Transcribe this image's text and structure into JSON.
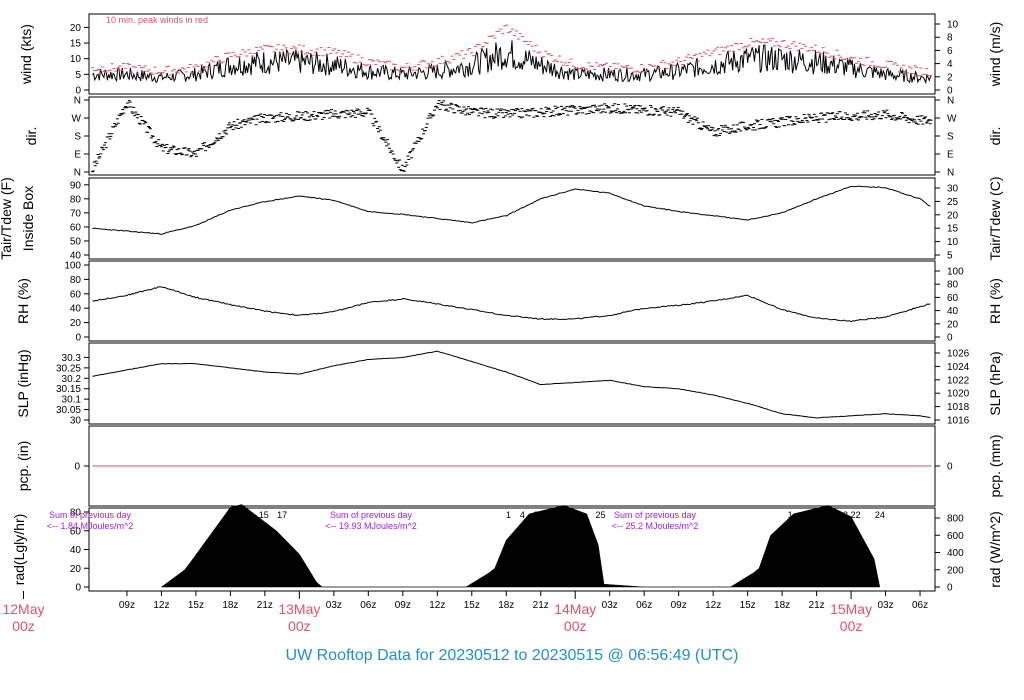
{
  "footer": {
    "title": "UW Rooftop Data for 20230512  to  20230515 @ 06:56:49  (UTC)"
  },
  "colors": {
    "peak": "#DF536B",
    "zero": "#DF536B",
    "sum": "#A020F0",
    "date": "#DF536B",
    "footer": "#1E90D0",
    "line": "#000000"
  },
  "chart_data": [
    {
      "type": "line",
      "ylabel": "wind (kts)",
      "ylabel_right": "wind (m/s)",
      "ylim": [
        0,
        23
      ],
      "yticks": [
        0,
        5,
        10,
        15,
        20
      ],
      "right_ticks": [
        "0",
        "2",
        "4",
        "6",
        "8",
        "10"
      ],
      "annotation": "10 min. peak winds in red",
      "x_range_hours": [
        6,
        79
      ],
      "series": [
        {
          "role": "sustained",
          "x": [
            6,
            9,
            12,
            15,
            18,
            21,
            24,
            27,
            30,
            33,
            36,
            39,
            42,
            45,
            48,
            51,
            54,
            57,
            60,
            63,
            66,
            69,
            72,
            75,
            78
          ],
          "values": [
            5,
            5,
            4,
            5,
            8,
            9,
            9,
            8,
            6,
            5,
            6,
            8,
            12,
            8,
            5,
            5,
            5,
            6,
            8,
            10,
            10,
            9,
            7,
            5,
            4
          ]
        },
        {
          "role": "peak",
          "x": [
            6,
            9,
            12,
            15,
            18,
            21,
            24,
            27,
            30,
            33,
            36,
            39,
            42,
            45,
            48,
            51,
            54,
            57,
            60,
            63,
            66,
            69,
            72,
            75,
            78
          ],
          "values": [
            7,
            7,
            6,
            7,
            11,
            13,
            13,
            12,
            9,
            7,
            9,
            12,
            20,
            12,
            8,
            7,
            7,
            9,
            12,
            15,
            15,
            13,
            10,
            8,
            6
          ]
        }
      ]
    },
    {
      "type": "scatter",
      "ylabel": "dir.",
      "ylabel_right": "dir.",
      "yticks": [
        "N",
        "E",
        "S",
        "W",
        "N"
      ],
      "ylim": [
        0,
        360
      ],
      "x": [
        6,
        9,
        12,
        15,
        18,
        21,
        24,
        27,
        30,
        33,
        36,
        39,
        42,
        45,
        48,
        51,
        54,
        57,
        60,
        63,
        66,
        69,
        72,
        75,
        78
      ],
      "values": [
        10,
        350,
        120,
        90,
        230,
        270,
        280,
        290,
        300,
        10,
        340,
        300,
        290,
        300,
        310,
        320,
        310,
        300,
        200,
        230,
        250,
        270,
        280,
        290,
        260
      ]
    },
    {
      "type": "line",
      "ylabel": "Tair/Tdew (F)",
      "ylabel2": "Inside Box",
      "ylabel_right": "Tair/Tdew (C)",
      "ylim": [
        40,
        92
      ],
      "yticks": [
        40,
        50,
        60,
        70,
        80,
        90
      ],
      "right_ticks": [
        "5",
        "10",
        "15",
        "20",
        "25",
        "30"
      ],
      "x": [
        6,
        9,
        12,
        15,
        18,
        21,
        24,
        27,
        30,
        33,
        36,
        39,
        42,
        45,
        48,
        51,
        54,
        57,
        60,
        63,
        66,
        69,
        72,
        75,
        78,
        79
      ],
      "values": [
        59,
        57,
        55,
        61,
        72,
        78,
        82,
        79,
        71,
        69,
        66,
        63,
        68,
        80,
        87,
        84,
        75,
        71,
        68,
        65,
        70,
        80,
        89,
        88,
        80,
        74
      ]
    },
    {
      "type": "line",
      "ylabel": "RH (%)",
      "ylabel_right": "RH (%)",
      "ylim": [
        0,
        100
      ],
      "yticks": [
        0,
        20,
        40,
        60,
        80,
        100
      ],
      "right_ticks": [
        "0",
        "20",
        "40",
        "60",
        "80",
        "100"
      ],
      "x": [
        6,
        9,
        12,
        15,
        18,
        21,
        24,
        27,
        30,
        33,
        36,
        39,
        42,
        45,
        48,
        51,
        54,
        57,
        60,
        63,
        66,
        69,
        72,
        75,
        78,
        79
      ],
      "values": [
        50,
        58,
        70,
        55,
        45,
        36,
        30,
        35,
        48,
        53,
        46,
        38,
        30,
        25,
        25,
        30,
        40,
        44,
        50,
        58,
        38,
        26,
        22,
        28,
        42,
        47
      ]
    },
    {
      "type": "line",
      "ylabel": "SLP (inHg)",
      "ylabel_right": "SLP (hPa)",
      "ylim": [
        30.0,
        30.35
      ],
      "yticks": [
        30.0,
        30.05,
        30.1,
        30.15,
        30.2,
        30.25,
        30.3
      ],
      "right_ticks": [
        "1016",
        "1018",
        "1020",
        "1022",
        "1024",
        "1026"
      ],
      "x": [
        6,
        9,
        12,
        15,
        18,
        21,
        24,
        27,
        30,
        33,
        36,
        39,
        42,
        45,
        48,
        51,
        54,
        57,
        60,
        63,
        66,
        69,
        72,
        75,
        78,
        79
      ],
      "values": [
        30.21,
        30.24,
        30.27,
        30.27,
        30.25,
        30.23,
        30.22,
        30.26,
        30.29,
        30.3,
        30.33,
        30.28,
        30.23,
        30.17,
        30.18,
        30.19,
        30.16,
        30.15,
        30.12,
        30.08,
        30.03,
        30.01,
        30.02,
        30.03,
        30.02,
        30.01
      ]
    },
    {
      "type": "line",
      "ylabel": "pcp. (in)",
      "ylabel_right": "pcp. (mm)",
      "yticks": [
        "0"
      ],
      "right_ticks": [
        "0"
      ],
      "x": [
        6,
        79
      ],
      "values": [
        0,
        0
      ]
    },
    {
      "type": "area",
      "ylabel": "rad(Lgly/hr)",
      "ylabel_right": "rad (W/m^2)",
      "ylim": [
        0,
        80
      ],
      "yticks": [
        0,
        20,
        40,
        60,
        80
      ],
      "right_ticks": [
        "0",
        "200",
        "400",
        "600",
        "800"
      ],
      "x": [
        12,
        14,
        14.5,
        18,
        19,
        22,
        24,
        25.5,
        26,
        38.5,
        40.5,
        41,
        42,
        44,
        47,
        49,
        50,
        50.5,
        54,
        61.5,
        63.5,
        64,
        65,
        67,
        70,
        72,
        74,
        74.5
      ],
      "values": [
        0,
        18,
        26,
        85,
        88,
        60,
        35,
        5,
        0,
        0,
        15,
        20,
        50,
        78,
        87,
        78,
        45,
        3,
        0,
        0,
        15,
        20,
        55,
        78,
        87,
        75,
        30,
        0
      ],
      "annotations": [
        {
          "line1": "Sum of previous day",
          "line2": "<-- 1.84 MJoules/m^2"
        },
        {
          "line1": "Sum of previous day",
          "line2": "<-- 19.93 MJoules/m^2"
        },
        {
          "line1": "Sum of previous day",
          "line2": "<-- 25.2 MJoules/m^2"
        }
      ],
      "top_marks": [
        {
          "x": 19.4,
          "label": "9"
        },
        {
          "x": 20.9,
          "label": "15"
        },
        {
          "x": 22.5,
          "label": "17"
        },
        {
          "x": 42.2,
          "label": "1"
        },
        {
          "x": 43.4,
          "label": "4"
        },
        {
          "x": 44.6,
          "label": "8"
        },
        {
          "x": 46.8,
          "label": "18"
        },
        {
          "x": 47.9,
          "label": "22"
        },
        {
          "x": 50.2,
          "label": "25"
        },
        {
          "x": 66.7,
          "label": "1"
        },
        {
          "x": 67.9,
          "label": "4"
        },
        {
          "x": 69.2,
          "label": "8"
        },
        {
          "x": 71.3,
          "label": "18"
        },
        {
          "x": 72.4,
          "label": "22"
        },
        {
          "x": 74.5,
          "label": "24"
        }
      ]
    }
  ],
  "x_axis": {
    "hour_ticks": [
      {
        "x": 9,
        "label": "09z"
      },
      {
        "x": 12,
        "label": "12z"
      },
      {
        "x": 15,
        "label": "15z"
      },
      {
        "x": 18,
        "label": "18z"
      },
      {
        "x": 21,
        "label": "21z"
      },
      {
        "x": 27,
        "label": "03z"
      },
      {
        "x": 30,
        "label": "06z"
      },
      {
        "x": 33,
        "label": "09z"
      },
      {
        "x": 36,
        "label": "12z"
      },
      {
        "x": 39,
        "label": "15z"
      },
      {
        "x": 42,
        "label": "18z"
      },
      {
        "x": 45,
        "label": "21z"
      },
      {
        "x": 51,
        "label": "03z"
      },
      {
        "x": 54,
        "label": "06z"
      },
      {
        "x": 57,
        "label": "09z"
      },
      {
        "x": 60,
        "label": "12z"
      },
      {
        "x": 63,
        "label": "15z"
      },
      {
        "x": 66,
        "label": "18z"
      },
      {
        "x": 69,
        "label": "21z"
      },
      {
        "x": 75,
        "label": "03z"
      },
      {
        "x": 78,
        "label": "06z"
      }
    ],
    "day_ticks": [
      {
        "x": 0,
        "line1": "12May",
        "line2": "00z"
      },
      {
        "x": 24,
        "line1": "13May",
        "line2": "00z"
      },
      {
        "x": 48,
        "line1": "14May",
        "line2": "00z"
      },
      {
        "x": 72,
        "line1": "15May",
        "line2": "00z"
      }
    ]
  }
}
